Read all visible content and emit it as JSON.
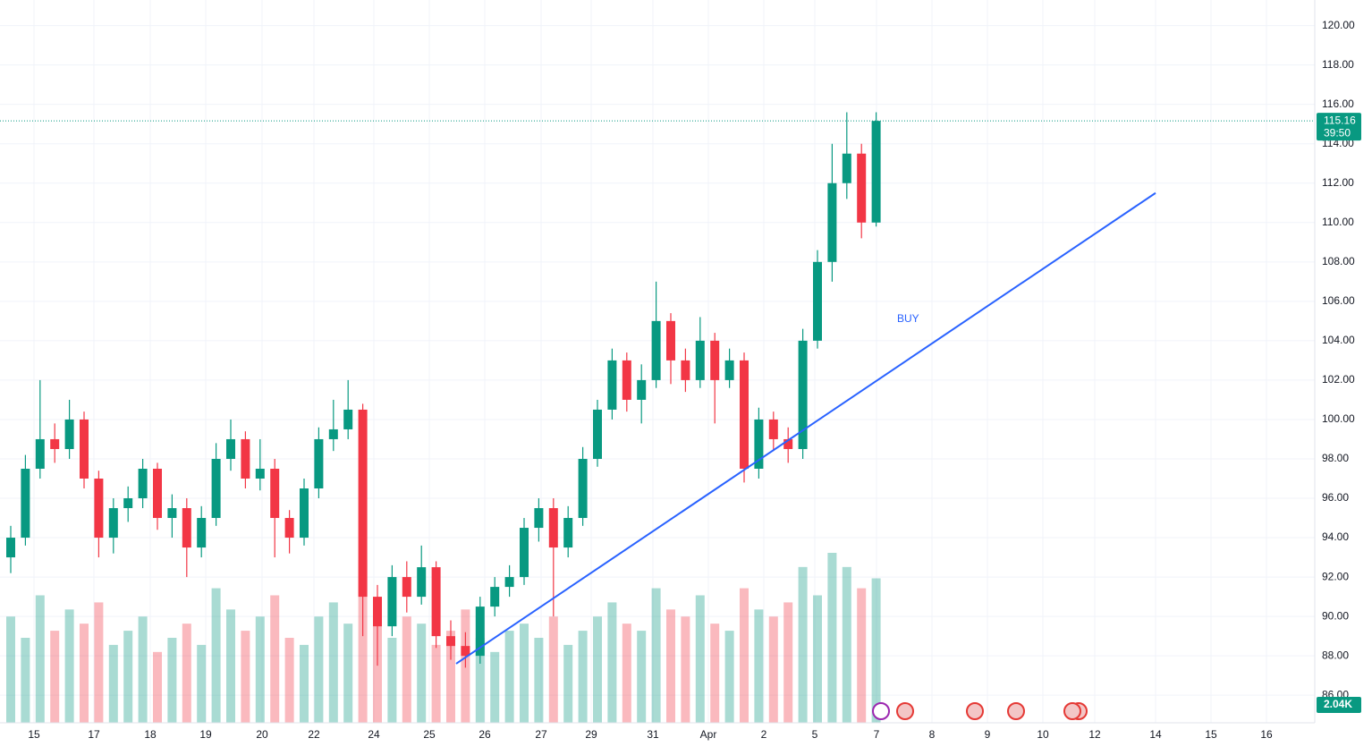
{
  "chart_data": {
    "type": "candlestick",
    "x_labels": [
      "15",
      "17",
      "18",
      "19",
      "20",
      "22",
      "24",
      "25",
      "26",
      "27",
      "29",
      "31",
      "Apr",
      "2",
      "5",
      "7",
      "8",
      "9",
      "10",
      "12",
      "14",
      "15",
      "16"
    ],
    "open": [
      93.0,
      94.0,
      97.5,
      99.0,
      98.5,
      100.0,
      97.0,
      94.0,
      95.5,
      96.0,
      97.5,
      95.0,
      95.5,
      93.5,
      95.0,
      98.0,
      99.0,
      97.0,
      97.5,
      95.0,
      94.0,
      96.5,
      99.0,
      99.5,
      100.5,
      91.0,
      89.5,
      92.0,
      91.0,
      92.5,
      89.0,
      88.5,
      88.0,
      90.5,
      91.5,
      92.0,
      94.5,
      95.5,
      93.5,
      95.0,
      98.0,
      100.5,
      103.0,
      101.0,
      102.0,
      105.0,
      103.0,
      102.0,
      104.0,
      102.0,
      103.0,
      97.5,
      100.0,
      99.0,
      98.5,
      104.0,
      108.0,
      112.0,
      113.5,
      110.0
    ],
    "high": [
      94.6,
      98.2,
      102.0,
      99.8,
      101.0,
      100.4,
      97.4,
      96.0,
      96.6,
      98.0,
      97.8,
      96.2,
      96.0,
      95.6,
      98.8,
      100.0,
      99.4,
      99.0,
      98.0,
      95.4,
      97.0,
      99.6,
      101.0,
      102.0,
      100.8,
      91.6,
      92.6,
      92.8,
      93.6,
      92.8,
      89.8,
      89.2,
      91.0,
      92.0,
      92.6,
      95.0,
      96.0,
      96.0,
      95.6,
      98.6,
      101.0,
      103.6,
      103.4,
      102.8,
      107.0,
      105.4,
      103.6,
      105.2,
      104.4,
      103.6,
      103.4,
      100.6,
      100.4,
      99.6,
      104.6,
      108.6,
      114.0,
      115.6,
      114.0,
      115.6
    ],
    "low": [
      92.2,
      93.6,
      97.0,
      97.8,
      98.0,
      96.5,
      93.0,
      93.2,
      94.8,
      95.5,
      94.4,
      94.0,
      92.0,
      93.0,
      94.6,
      97.4,
      96.5,
      96.4,
      93.0,
      93.2,
      93.6,
      96.0,
      98.4,
      99.0,
      89.0,
      87.5,
      89.0,
      90.2,
      90.6,
      88.4,
      87.8,
      87.4,
      87.6,
      90.0,
      91.0,
      91.6,
      93.8,
      90.0,
      93.0,
      94.6,
      97.6,
      100.0,
      100.4,
      99.8,
      101.6,
      101.8,
      101.4,
      101.6,
      99.8,
      101.6,
      96.8,
      97.0,
      98.4,
      97.8,
      98.0,
      103.6,
      107.0,
      111.2,
      109.2,
      109.8
    ],
    "close": [
      94.0,
      97.5,
      99.0,
      98.5,
      100.0,
      97.0,
      94.0,
      95.5,
      96.0,
      97.5,
      95.0,
      95.5,
      93.5,
      95.0,
      98.0,
      99.0,
      97.0,
      97.5,
      95.0,
      94.0,
      96.5,
      99.0,
      99.5,
      100.5,
      91.0,
      89.5,
      92.0,
      91.0,
      92.5,
      89.0,
      88.5,
      88.0,
      90.5,
      91.5,
      92.0,
      94.5,
      95.5,
      93.5,
      95.0,
      98.0,
      100.5,
      103.0,
      101.0,
      102.0,
      105.0,
      103.0,
      102.0,
      104.0,
      102.0,
      103.0,
      97.5,
      100.0,
      99.0,
      98.5,
      104.0,
      108.0,
      112.0,
      113.5,
      110.0,
      115.16
    ],
    "volume": [
      1500,
      1200,
      1800,
      1300,
      1600,
      1400,
      1700,
      1100,
      1300,
      1500,
      1000,
      1200,
      1400,
      1100,
      1900,
      1600,
      1300,
      1500,
      1800,
      1200,
      1100,
      1500,
      1700,
      1400,
      2300,
      1600,
      1200,
      1500,
      1400,
      1100,
      1300,
      1600,
      1200,
      1000,
      1300,
      1400,
      1200,
      1500,
      1100,
      1300,
      1500,
      1700,
      1400,
      1300,
      1900,
      1600,
      1500,
      1800,
      1400,
      1300,
      1900,
      1600,
      1500,
      1700,
      2200,
      1800,
      2400,
      2200,
      1900,
      2040
    ],
    "volume_label": "2.04K",
    "last_price_label": "115.16",
    "countdown": "39:50",
    "annotation": "BUY",
    "trendline": [
      87.6,
      111.5
    ],
    "ylim": [
      84.6,
      121.3
    ],
    "yticks": [
      {
        "value": 86,
        "label": "86.00"
      },
      {
        "value": 88,
        "label": "88.00"
      },
      {
        "value": 90,
        "label": "90.00"
      },
      {
        "value": 92,
        "label": "92.00"
      },
      {
        "value": 94,
        "label": "94.00"
      },
      {
        "value": 96,
        "label": "96.00"
      },
      {
        "value": 98,
        "label": "98.00"
      },
      {
        "value": 100,
        "label": "100.00"
      },
      {
        "value": 102,
        "label": "102.00"
      },
      {
        "value": 104,
        "label": "104.00"
      },
      {
        "value": 106,
        "label": "106.00"
      },
      {
        "value": 108,
        "label": "108.00"
      },
      {
        "value": 110,
        "label": "110.00"
      },
      {
        "value": 112,
        "label": "112.00"
      },
      {
        "value": 114,
        "label": "114.00"
      },
      {
        "value": 116,
        "label": "116.00"
      },
      {
        "value": 118,
        "label": "118.00"
      },
      {
        "value": 120,
        "label": "120.00"
      }
    ],
    "up_color": "#089981",
    "down_color": "#f23645",
    "grid": true
  }
}
